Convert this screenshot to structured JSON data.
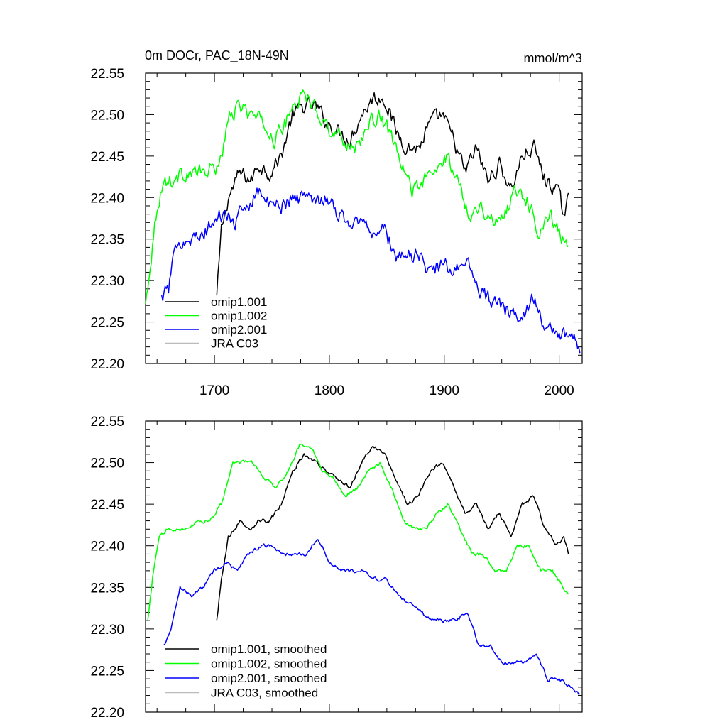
{
  "chart_data": [
    {
      "type": "line",
      "title": "0m DOCr, PAC_18N-49N",
      "units": "mmol/m^3",
      "xlim": [
        1640,
        2020
      ],
      "ylim": [
        22.2,
        22.55
      ],
      "x_ticks": [
        1700,
        1800,
        1900,
        2000
      ],
      "x_tick_labels": [
        "1700",
        "1800",
        "1900",
        "2000"
      ],
      "y_ticks": [
        22.2,
        22.25,
        22.3,
        22.35,
        22.4,
        22.45,
        22.5,
        22.55
      ],
      "y_tick_labels": [
        "22.20",
        "22.25",
        "22.30",
        "22.35",
        "22.40",
        "22.45",
        "22.50",
        "22.55"
      ],
      "grid": false,
      "legend_position": "bottom-left",
      "series": [
        {
          "name": "omip1.001",
          "color": "#000000",
          "noise": 0.008,
          "x": [
            1702,
            1706,
            1712,
            1722,
            1732,
            1738,
            1748,
            1758,
            1768,
            1778,
            1788,
            1798,
            1808,
            1818,
            1828,
            1838,
            1848,
            1858,
            1868,
            1878,
            1888,
            1898,
            1908,
            1918,
            1928,
            1938,
            1948,
            1958,
            1968,
            1978,
            1988,
            1998,
            2004,
            2008
          ],
          "y": [
            22.28,
            22.36,
            22.4,
            22.43,
            22.42,
            22.44,
            22.43,
            22.45,
            22.5,
            22.51,
            22.51,
            22.49,
            22.48,
            22.47,
            22.5,
            22.52,
            22.52,
            22.48,
            22.46,
            22.46,
            22.49,
            22.5,
            22.47,
            22.43,
            22.46,
            22.42,
            22.44,
            22.41,
            22.45,
            22.46,
            22.42,
            22.41,
            22.38,
            22.4
          ]
        },
        {
          "name": "omip1.002",
          "color": "#00ff00",
          "noise": 0.008,
          "x": [
            1640,
            1644,
            1650,
            1656,
            1664,
            1674,
            1684,
            1694,
            1704,
            1714,
            1724,
            1732,
            1742,
            1752,
            1762,
            1772,
            1782,
            1792,
            1802,
            1812,
            1822,
            1832,
            1842,
            1852,
            1862,
            1872,
            1882,
            1892,
            1902,
            1912,
            1922,
            1932,
            1942,
            1952,
            1962,
            1972,
            1982,
            1992,
            2002,
            2008
          ],
          "y": [
            22.27,
            22.32,
            22.39,
            22.42,
            22.42,
            22.43,
            22.43,
            22.43,
            22.44,
            22.5,
            22.51,
            22.5,
            22.49,
            22.47,
            22.49,
            22.52,
            22.52,
            22.5,
            22.48,
            22.47,
            22.46,
            22.48,
            22.5,
            22.48,
            22.44,
            22.41,
            22.42,
            22.43,
            22.45,
            22.42,
            22.38,
            22.39,
            22.37,
            22.38,
            22.41,
            22.4,
            22.36,
            22.38,
            22.35,
            22.34
          ]
        },
        {
          "name": "omip2.001",
          "color": "#0000ff",
          "noise": 0.008,
          "x": [
            1654,
            1660,
            1668,
            1678,
            1688,
            1698,
            1708,
            1718,
            1728,
            1738,
            1748,
            1758,
            1768,
            1778,
            1788,
            1798,
            1808,
            1818,
            1828,
            1838,
            1848,
            1858,
            1868,
            1878,
            1888,
            1898,
            1908,
            1918,
            1928,
            1938,
            1948,
            1958,
            1968,
            1978,
            1988,
            1998,
            2008,
            2014,
            2018
          ],
          "y": [
            22.28,
            22.29,
            22.35,
            22.35,
            22.35,
            22.37,
            22.38,
            22.37,
            22.39,
            22.41,
            22.39,
            22.39,
            22.4,
            22.4,
            22.4,
            22.4,
            22.38,
            22.37,
            22.37,
            22.36,
            22.36,
            22.33,
            22.33,
            22.33,
            22.31,
            22.32,
            22.31,
            22.33,
            22.29,
            22.28,
            22.27,
            22.26,
            22.26,
            22.28,
            22.24,
            22.24,
            22.23,
            22.23,
            22.22
          ]
        },
        {
          "name": "JRA C03",
          "color": "#bbbbbb",
          "x": [],
          "y": []
        }
      ]
    },
    {
      "type": "line",
      "xlim": [
        1640,
        2020
      ],
      "ylim": [
        22.2,
        22.55
      ],
      "x_ticks": [
        1700,
        1800,
        1900,
        2000
      ],
      "y_ticks": [
        22.2,
        22.25,
        22.3,
        22.35,
        22.4,
        22.45,
        22.5,
        22.55
      ],
      "y_tick_labels": [
        "22.20",
        "22.25",
        "22.30",
        "22.35",
        "22.40",
        "22.45",
        "22.50",
        "22.55"
      ],
      "grid": false,
      "legend_position": "bottom-left",
      "series": [
        {
          "name": "omip1.001, smoothed",
          "color": "#000000",
          "noise": 0.002,
          "x": [
            1702,
            1706,
            1712,
            1722,
            1732,
            1738,
            1748,
            1758,
            1768,
            1778,
            1788,
            1798,
            1808,
            1818,
            1828,
            1838,
            1848,
            1858,
            1868,
            1878,
            1888,
            1898,
            1908,
            1918,
            1928,
            1938,
            1948,
            1958,
            1968,
            1978,
            1988,
            1998,
            2004,
            2008
          ],
          "y": [
            22.31,
            22.36,
            22.41,
            22.43,
            22.42,
            22.43,
            22.43,
            22.45,
            22.49,
            22.51,
            22.5,
            22.49,
            22.48,
            22.47,
            22.5,
            22.52,
            22.51,
            22.48,
            22.45,
            22.46,
            22.49,
            22.5,
            22.47,
            22.44,
            22.45,
            22.42,
            22.44,
            22.41,
            22.45,
            22.46,
            22.42,
            22.4,
            22.41,
            22.39
          ]
        },
        {
          "name": "omip1.002, smoothed",
          "color": "#00ff00",
          "noise": 0.002,
          "x": [
            1642,
            1646,
            1652,
            1658,
            1666,
            1676,
            1686,
            1696,
            1706,
            1716,
            1726,
            1734,
            1744,
            1754,
            1764,
            1774,
            1784,
            1794,
            1804,
            1814,
            1824,
            1834,
            1844,
            1854,
            1864,
            1874,
            1884,
            1894,
            1904,
            1914,
            1924,
            1934,
            1944,
            1954,
            1964,
            1974,
            1984,
            1994,
            2004,
            2008
          ],
          "y": [
            22.31,
            22.36,
            22.41,
            22.42,
            22.42,
            22.42,
            22.43,
            22.43,
            22.45,
            22.5,
            22.5,
            22.5,
            22.48,
            22.47,
            22.49,
            22.52,
            22.52,
            22.49,
            22.48,
            22.46,
            22.47,
            22.49,
            22.5,
            22.47,
            22.43,
            22.42,
            22.42,
            22.44,
            22.45,
            22.42,
            22.39,
            22.39,
            22.37,
            22.37,
            22.4,
            22.4,
            22.37,
            22.37,
            22.35,
            22.34
          ]
        },
        {
          "name": "omip2.001, smoothed",
          "color": "#0000ff",
          "noise": 0.002,
          "x": [
            1656,
            1662,
            1670,
            1680,
            1690,
            1700,
            1710,
            1720,
            1730,
            1740,
            1750,
            1760,
            1770,
            1780,
            1790,
            1800,
            1810,
            1820,
            1830,
            1840,
            1850,
            1860,
            1870,
            1880,
            1890,
            1900,
            1910,
            1920,
            1930,
            1940,
            1950,
            1960,
            1970,
            1980,
            1990,
            2000,
            2010,
            2018
          ],
          "y": [
            22.28,
            22.3,
            22.35,
            22.34,
            22.35,
            22.37,
            22.38,
            22.37,
            22.39,
            22.4,
            22.4,
            22.39,
            22.39,
            22.39,
            22.41,
            22.38,
            22.37,
            22.37,
            22.37,
            22.36,
            22.36,
            22.34,
            22.33,
            22.32,
            22.31,
            22.31,
            22.31,
            22.32,
            22.28,
            22.28,
            22.26,
            22.26,
            22.26,
            22.27,
            22.24,
            22.24,
            22.23,
            22.22
          ]
        },
        {
          "name": "JRA C03, smoothed",
          "color": "#bbbbbb",
          "x": [],
          "y": []
        }
      ]
    }
  ]
}
